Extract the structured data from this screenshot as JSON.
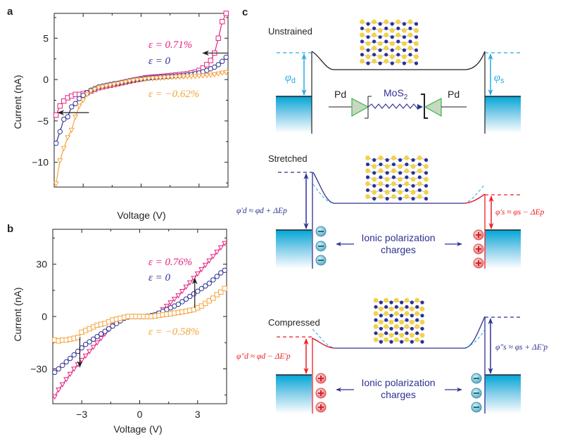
{
  "colors": {
    "pink": "#e8217f",
    "navy": "#2e3192",
    "orange": "#f5a33a",
    "cyan": "#27aae1",
    "red": "#ed1c24",
    "black": "#231f20",
    "metal_top": "#00a6d6",
    "atom_s": "#f2d24b",
    "atom_mo": "#2e3192",
    "diode_fill": "#c8d8c0",
    "diode_stroke": "#39b54a"
  },
  "chart_data": [
    {
      "panel": "a",
      "type": "line",
      "xlabel": "Voltage (V)",
      "ylabel": "Current (nA)",
      "xlim": [
        -4.5,
        4.5
      ],
      "ylim": [
        -13,
        8
      ],
      "xticks": [
        -3,
        0,
        3
      ],
      "xtick_labels_visible": false,
      "yticks": [
        -10,
        -5,
        0,
        5
      ],
      "ytick_labels": [
        "−10",
        "−5",
        "0",
        "5"
      ],
      "grid": false,
      "series": [
        {
          "name": "ε = 0.71%",
          "color": "pink",
          "marker": "square",
          "x": [
            -4.4,
            -4.2,
            -4.0,
            -3.8,
            -3.6,
            -3.4,
            -3.2,
            -3.0,
            -2.8,
            -2.6,
            -2.4,
            -2.2,
            -2.0,
            -1.8,
            -1.6,
            -1.4,
            -1.2,
            -1.0,
            -0.8,
            -0.6,
            -0.4,
            -0.2,
            0.0,
            0.2,
            0.4,
            0.6,
            0.8,
            1.0,
            1.2,
            1.4,
            1.6,
            1.8,
            2.0,
            2.2,
            2.4,
            2.6,
            2.8,
            3.0,
            3.2,
            3.4,
            3.6,
            3.8,
            4.0,
            4.2,
            4.4
          ],
          "y": [
            -4.3,
            -3.2,
            -2.6,
            -2.2,
            -2.0,
            -1.8,
            -1.8,
            -1.7,
            -1.6,
            -1.4,
            -1.2,
            -1.0,
            -0.9,
            -0.8,
            -0.7,
            -0.6,
            -0.5,
            -0.4,
            -0.3,
            -0.2,
            -0.1,
            0.0,
            0.1,
            0.2,
            0.25,
            0.3,
            0.33,
            0.36,
            0.4,
            0.45,
            0.5,
            0.55,
            0.6,
            0.65,
            0.7,
            0.8,
            0.9,
            1.1,
            1.4,
            1.8,
            2.3,
            3.2,
            5.0,
            7.0,
            8.0
          ]
        },
        {
          "name": "ε = 0",
          "color": "navy",
          "marker": "circle",
          "x": [
            -4.4,
            -4.2,
            -4.0,
            -3.8,
            -3.6,
            -3.4,
            -3.2,
            -3.0,
            -2.8,
            -2.6,
            -2.4,
            -2.2,
            -2.0,
            -1.8,
            -1.6,
            -1.4,
            -1.2,
            -1.0,
            -0.8,
            -0.6,
            -0.4,
            -0.2,
            0.0,
            0.2,
            0.4,
            0.6,
            0.8,
            1.0,
            1.2,
            1.4,
            1.6,
            1.8,
            2.0,
            2.2,
            2.4,
            2.6,
            2.8,
            3.0,
            3.2,
            3.4,
            3.6,
            3.8,
            4.0,
            4.2,
            4.4
          ],
          "y": [
            -7.7,
            -6.3,
            -4.8,
            -4.5,
            -3.3,
            -2.9,
            -2.3,
            -1.9,
            -1.6,
            -1.3,
            -1.1,
            -0.9,
            -0.8,
            -0.7,
            -0.6,
            -0.5,
            -0.45,
            -0.35,
            -0.25,
            -0.15,
            -0.05,
            0.0,
            0.05,
            0.12,
            0.18,
            0.22,
            0.26,
            0.3,
            0.33,
            0.36,
            0.4,
            0.43,
            0.46,
            0.5,
            0.55,
            0.6,
            0.7,
            0.8,
            0.95,
            1.1,
            1.3,
            1.5,
            1.8,
            2.2,
            2.7
          ]
        },
        {
          "name": "ε = −0.62%",
          "color": "orange",
          "marker": "triangle-down",
          "x": [
            -4.4,
            -4.2,
            -4.0,
            -3.8,
            -3.6,
            -3.4,
            -3.2,
            -3.0,
            -2.8,
            -2.6,
            -2.4,
            -2.2,
            -2.0,
            -1.8,
            -1.6,
            -1.4,
            -1.2,
            -1.0,
            -0.8,
            -0.6,
            -0.4,
            -0.2,
            0.0,
            0.2,
            0.4,
            0.6,
            0.8,
            1.0,
            1.2,
            1.4,
            1.6,
            1.8,
            2.0,
            2.2,
            2.4,
            2.6,
            2.8,
            3.0,
            3.2,
            3.4,
            3.6,
            3.8,
            4.0,
            4.2,
            4.4
          ],
          "y": [
            -12.6,
            -9.8,
            -8.3,
            -7.0,
            -6.1,
            -4.5,
            -3.2,
            -2.5,
            -1.8,
            -1.4,
            -1.2,
            -1.0,
            -0.9,
            -0.8,
            -0.7,
            -0.6,
            -0.5,
            -0.4,
            -0.3,
            -0.2,
            -0.12,
            -0.05,
            0.0,
            0.05,
            0.1,
            0.13,
            0.16,
            0.19,
            0.22,
            0.25,
            0.28,
            0.3,
            0.32,
            0.34,
            0.36,
            0.38,
            0.4,
            0.43,
            0.46,
            0.5,
            0.55,
            0.6,
            0.7,
            0.8,
            0.85
          ]
        }
      ],
      "annotations": [
        {
          "text": "ε = 0.71%",
          "color": "pink"
        },
        {
          "text": "ε = 0",
          "color": "navy"
        },
        {
          "text": "ε = −0.62%",
          "color": "orange"
        },
        {
          "type": "arrow",
          "from": [
            4.5,
            3.2
          ],
          "to": [
            3.2,
            3.2
          ],
          "color": "black"
        },
        {
          "type": "arrow",
          "from": [
            -2.7,
            -4.0
          ],
          "to": [
            -4.3,
            -4.0
          ],
          "color": "black"
        }
      ]
    },
    {
      "panel": "b",
      "type": "line",
      "xlabel": "Voltage (V)",
      "ylabel": "Current (nA)",
      "xlim": [
        -4.5,
        4.5
      ],
      "ylim": [
        -50,
        50
      ],
      "xticks": [
        -3,
        0,
        3
      ],
      "xtick_labels": [
        "−3",
        "0",
        "3"
      ],
      "yticks": [
        -30,
        0,
        30
      ],
      "ytick_labels": [
        "−30",
        "0",
        "30"
      ],
      "grid": false,
      "series": [
        {
          "name": "ε = 0.76%",
          "color": "pink",
          "marker": "triangle-down",
          "x": [
            -4.4,
            -4.2,
            -4.0,
            -3.8,
            -3.6,
            -3.4,
            -3.2,
            -3.0,
            -2.8,
            -2.6,
            -2.4,
            -2.2,
            -2.0,
            -1.8,
            -1.6,
            -1.4,
            -1.2,
            -1.0,
            -0.8,
            -0.6,
            -0.4,
            -0.2,
            0.0,
            0.2,
            0.4,
            0.6,
            0.8,
            1.0,
            1.2,
            1.4,
            1.6,
            1.8,
            2.0,
            2.2,
            2.4,
            2.6,
            2.8,
            3.0,
            3.2,
            3.4,
            3.6,
            3.8,
            4.0,
            4.2,
            4.4
          ],
          "y": [
            -46,
            -42,
            -39,
            -36,
            -33,
            -30,
            -27.5,
            -25,
            -22.5,
            -20,
            -17.5,
            -15,
            -12.5,
            -10,
            -7.5,
            -5,
            -3,
            -1.5,
            -0.5,
            0,
            0,
            0,
            0,
            0,
            0,
            0.3,
            1,
            2,
            4,
            6,
            8,
            10,
            12,
            14.5,
            17,
            19.5,
            22,
            24.5,
            27,
            29.5,
            32,
            34.5,
            37,
            39.5,
            42
          ]
        },
        {
          "name": "ε = 0",
          "color": "navy",
          "marker": "circle",
          "x": [
            -4.4,
            -4.2,
            -4.0,
            -3.8,
            -3.6,
            -3.4,
            -3.2,
            -3.0,
            -2.8,
            -2.6,
            -2.4,
            -2.2,
            -2.0,
            -1.8,
            -1.6,
            -1.4,
            -1.2,
            -1.0,
            -0.8,
            -0.6,
            -0.4,
            -0.2,
            0.0,
            0.2,
            0.4,
            0.6,
            0.8,
            1.0,
            1.2,
            1.4,
            1.6,
            1.8,
            2.0,
            2.2,
            2.4,
            2.6,
            2.8,
            3.0,
            3.2,
            3.4,
            3.6,
            3.8,
            4.0,
            4.2,
            4.4
          ],
          "y": [
            -32,
            -30,
            -28,
            -26,
            -24,
            -22,
            -20,
            -18,
            -16,
            -14.5,
            -13,
            -11.5,
            -10,
            -8.5,
            -7,
            -5.5,
            -4,
            -2.5,
            -1,
            -0.3,
            0,
            0,
            0,
            0,
            0.2,
            0.5,
            1,
            2,
            3,
            4,
            5,
            6,
            7,
            8.5,
            10,
            11.5,
            13,
            14.5,
            16,
            17.5,
            19,
            21,
            23,
            25,
            26.5
          ]
        },
        {
          "name": "ε = −0.58%",
          "color": "orange",
          "marker": "square",
          "x": [
            -4.4,
            -4.2,
            -4.0,
            -3.8,
            -3.6,
            -3.4,
            -3.2,
            -3.0,
            -2.8,
            -2.6,
            -2.4,
            -2.2,
            -2.0,
            -1.8,
            -1.6,
            -1.4,
            -1.2,
            -1.0,
            -0.8,
            -0.6,
            -0.4,
            -0.2,
            0.0,
            0.2,
            0.4,
            0.6,
            0.8,
            1.0,
            1.2,
            1.4,
            1.6,
            1.8,
            2.0,
            2.2,
            2.4,
            2.6,
            2.8,
            3.0,
            3.2,
            3.4,
            3.6,
            3.8,
            4.0,
            4.2,
            4.4
          ],
          "y": [
            -13.5,
            -14,
            -13.5,
            -13.5,
            -13,
            -12.5,
            -12,
            -9,
            -8,
            -7,
            -6,
            -5,
            -4.5,
            -4,
            -3,
            -2,
            -1.5,
            -1,
            -0.5,
            0,
            0,
            0,
            0,
            0,
            0,
            0,
            0.3,
            0.6,
            1,
            1.3,
            1.6,
            2,
            2.3,
            2.7,
            3,
            3.5,
            4,
            5,
            6,
            7.5,
            9,
            10.5,
            12.5,
            14,
            16
          ]
        }
      ],
      "annotations": [
        {
          "text": "ε = 0.76%",
          "color": "pink"
        },
        {
          "text": "ε = 0",
          "color": "navy"
        },
        {
          "text": "ε = −0.58%",
          "color": "orange"
        },
        {
          "type": "arrow",
          "from": [
            2.85,
            5
          ],
          "to": [
            2.85,
            22
          ],
          "color": "black"
        },
        {
          "type": "arrow",
          "from": [
            -3.1,
            -12
          ],
          "to": [
            -3.1,
            -29
          ],
          "color": "black"
        }
      ]
    }
  ],
  "panels": {
    "a": {
      "letter": "a"
    },
    "b": {
      "letter": "b"
    },
    "c": {
      "letter": "c",
      "unstrained": {
        "title": "Unstrained",
        "phi_d": "φ",
        "phi_d_sub": "d",
        "phi_s": "φ",
        "phi_s_sub": "s",
        "pd_left": "Pd",
        "pd_right": "Pd",
        "mos2": "MoS",
        "mos2_sub": "2"
      },
      "stretched": {
        "title": "Stretched",
        "left_eq": "φ′d ≈ φd + ΔEp",
        "right_eq": "φ′s ≈ φs − ΔEp",
        "ionic_line1": "Ionic polarization",
        "ionic_line2": "charges",
        "left_charge": "−",
        "right_charge": "+"
      },
      "compressed": {
        "title": "Compressed",
        "left_eq": "φ″d ≈ φd − ΔE′p",
        "right_eq": "φ″s ≈ φs + ΔE′p",
        "ionic_line1": "Ionic polarization",
        "ionic_line2": "charges",
        "left_charge": "+",
        "right_charge": "−"
      }
    }
  }
}
